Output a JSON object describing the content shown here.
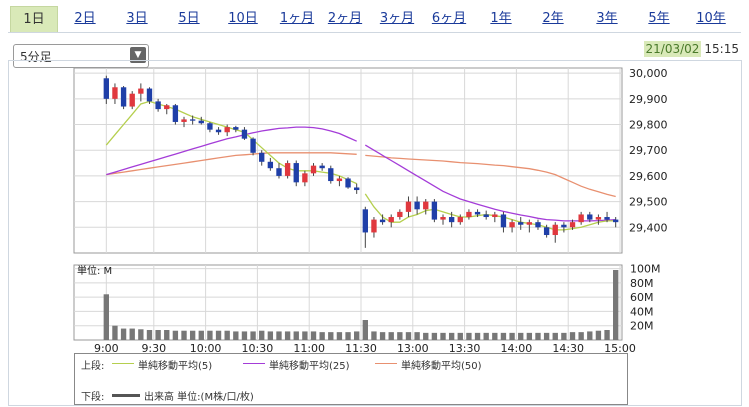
{
  "tabs": [
    "1日",
    "2日",
    "3日",
    "5日",
    "10日",
    "1ヶ月",
    "2ヶ月",
    "3ヶ月",
    "6ヶ月",
    "1年",
    "2年",
    "3年",
    "5年",
    "10年"
  ],
  "active_tab": "1日",
  "interval_select": {
    "value": "5分足"
  },
  "timestamp": {
    "date": "21/03/02",
    "time": "15:15"
  },
  "colors": {
    "up": "#e0383e",
    "down": "#1f3fa8",
    "ma5": "#b5cf4e",
    "ma25": "#a43cd8",
    "ma50": "#e89070",
    "volume": "#777777",
    "grid": "#d8d8d8",
    "accent": "#d9e9b8"
  },
  "chart_data": [
    {
      "type": "candlestick",
      "x_ticks": [
        "9:00",
        "9:30",
        "10:00",
        "10:30",
        "11:00",
        "11:30",
        "13:00",
        "13:30",
        "14:00",
        "14:30",
        "15:00"
      ],
      "y_ticks": [
        "30,000",
        "29,900",
        "29,800",
        "29,700",
        "29,600",
        "29,500",
        "29,400"
      ],
      "ylim": [
        29300,
        30020
      ],
      "grid": true,
      "sessions": [
        {
          "start_bar": 0,
          "bars": 30
        },
        {
          "start_bar": 30,
          "bars": 30
        }
      ],
      "candles": [
        [
          29980,
          29990,
          29880,
          29900
        ],
        [
          29900,
          29960,
          29880,
          29945
        ],
        [
          29945,
          29950,
          29860,
          29870
        ],
        [
          29870,
          29930,
          29860,
          29920
        ],
        [
          29920,
          29960,
          29890,
          29940
        ],
        [
          29940,
          29945,
          29880,
          29890
        ],
        [
          29890,
          29900,
          29850,
          29860
        ],
        [
          29860,
          29880,
          29840,
          29875
        ],
        [
          29875,
          29880,
          29800,
          29810
        ],
        [
          29810,
          29830,
          29790,
          29820
        ],
        [
          29820,
          29835,
          29800,
          29815
        ],
        [
          29815,
          29830,
          29800,
          29805
        ],
        [
          29805,
          29810,
          29770,
          29780
        ],
        [
          29780,
          29790,
          29760,
          29770
        ],
        [
          29770,
          29800,
          29755,
          29790
        ],
        [
          29790,
          29795,
          29770,
          29780
        ],
        [
          29780,
          29790,
          29740,
          29745
        ],
        [
          29745,
          29750,
          29680,
          29690
        ],
        [
          29690,
          29700,
          29640,
          29655
        ],
        [
          29655,
          29670,
          29620,
          29630
        ],
        [
          29630,
          29650,
          29590,
          29600
        ],
        [
          29600,
          29660,
          29590,
          29650
        ],
        [
          29650,
          29660,
          29560,
          29575
        ],
        [
          29575,
          29620,
          29560,
          29610
        ],
        [
          29610,
          29650,
          29600,
          29640
        ],
        [
          29640,
          29650,
          29620,
          29630
        ],
        [
          29630,
          29640,
          29570,
          29580
        ],
        [
          29580,
          29600,
          29560,
          29590
        ],
        [
          29590,
          29595,
          29550,
          29555
        ],
        [
          29555,
          29570,
          29530,
          29545
        ],
        [
          29470,
          29480,
          29320,
          29380
        ],
        [
          29380,
          29440,
          29360,
          29430
        ],
        [
          29430,
          29450,
          29410,
          29420
        ],
        [
          29420,
          29450,
          29400,
          29440
        ],
        [
          29440,
          29470,
          29430,
          29460
        ],
        [
          29460,
          29520,
          29440,
          29500
        ],
        [
          29500,
          29520,
          29450,
          29470
        ],
        [
          29470,
          29510,
          29450,
          29500
        ],
        [
          29500,
          29510,
          29420,
          29430
        ],
        [
          29430,
          29450,
          29410,
          29440
        ],
        [
          29440,
          29460,
          29400,
          29420
        ],
        [
          29420,
          29450,
          29410,
          29440
        ],
        [
          29440,
          29470,
          29430,
          29460
        ],
        [
          29460,
          29470,
          29440,
          29450
        ],
        [
          29450,
          29465,
          29430,
          29440
        ],
        [
          29440,
          29460,
          29420,
          29450
        ],
        [
          29450,
          29460,
          29380,
          29400
        ],
        [
          29400,
          29430,
          29380,
          29420
        ],
        [
          29420,
          29440,
          29390,
          29410
        ],
        [
          29410,
          29430,
          29380,
          29420
        ],
        [
          29420,
          29430,
          29390,
          29400
        ],
        [
          29400,
          29410,
          29360,
          29370
        ],
        [
          29370,
          29420,
          29340,
          29410
        ],
        [
          29410,
          29420,
          29380,
          29400
        ],
        [
          29400,
          29430,
          29390,
          29420
        ],
        [
          29420,
          29460,
          29410,
          29450
        ],
        [
          29450,
          29460,
          29420,
          29430
        ],
        [
          29430,
          29450,
          29410,
          29440
        ],
        [
          29440,
          29460,
          29420,
          29430
        ],
        [
          29430,
          29440,
          29400,
          29420
        ]
      ],
      "ma5": [
        29720,
        29760,
        29800,
        29840,
        29880,
        29890,
        29880,
        29870,
        29860,
        29845,
        29830,
        29820,
        29810,
        29800,
        29790,
        29780,
        29770,
        29740,
        29710,
        29680,
        29650,
        29630,
        29620,
        29620,
        29620,
        29615,
        29610,
        29600,
        29585,
        29570,
        29530,
        29480,
        29440,
        29420,
        29420,
        29440,
        29450,
        29465,
        29470,
        29460,
        29450,
        29440,
        29440,
        29445,
        29450,
        29445,
        29440,
        29430,
        29420,
        29415,
        29410,
        29400,
        29390,
        29390,
        29395,
        29400,
        29410,
        29420,
        29425,
        29425
      ],
      "ma25": [
        29605,
        29615,
        29625,
        29635,
        29645,
        29655,
        29665,
        29675,
        29685,
        29695,
        29705,
        29715,
        29725,
        29735,
        29745,
        29752,
        29760,
        29768,
        29775,
        29780,
        29785,
        29787,
        29790,
        29790,
        29788,
        29783,
        29775,
        29765,
        29750,
        29735,
        29720,
        29700,
        29680,
        29660,
        29640,
        29620,
        29600,
        29580,
        29560,
        29540,
        29525,
        29510,
        29500,
        29490,
        29480,
        29470,
        29462,
        29455,
        29448,
        29442,
        29435,
        29430,
        29428,
        29425,
        29425,
        29425,
        29425,
        29426,
        29428,
        29430
      ],
      "ma50": [
        29605,
        29610,
        29615,
        29620,
        29625,
        29630,
        29635,
        29640,
        29645,
        29650,
        29655,
        29660,
        29665,
        29670,
        29675,
        29680,
        29682,
        29685,
        29688,
        29690,
        29690,
        29690,
        29690,
        29690,
        29690,
        29690,
        29690,
        29688,
        29686,
        29684,
        29680,
        29677,
        29674,
        29670,
        29668,
        29666,
        29664,
        29662,
        29660,
        29658,
        29655,
        29652,
        29650,
        29648,
        29645,
        29642,
        29640,
        29636,
        29632,
        29628,
        29622,
        29615,
        29605,
        29590,
        29575,
        29560,
        29548,
        29538,
        29528,
        29520
      ]
    },
    {
      "type": "bar",
      "title": "単位: M",
      "y_ticks": [
        "100M",
        "80M",
        "60M",
        "40M",
        "20M"
      ],
      "ylim": [
        0,
        105
      ],
      "values": [
        64,
        20,
        16,
        16,
        15,
        14,
        14,
        14,
        13,
        13,
        13,
        13,
        13,
        13,
        13,
        12,
        12,
        12,
        13,
        12,
        12,
        12,
        12,
        12,
        12,
        11,
        11,
        11,
        11,
        12,
        28,
        12,
        11,
        11,
        11,
        11,
        11,
        10,
        10,
        10,
        10,
        10,
        10,
        10,
        10,
        10,
        10,
        10,
        10,
        10,
        10,
        10,
        10,
        10,
        11,
        11,
        12,
        13,
        14,
        98
      ]
    }
  ],
  "legend": {
    "upper_label": "上段:",
    "lower_label": "下段:",
    "items": [
      {
        "label": "単純移動平均(5)"
      },
      {
        "label": "単純移動平均(25)"
      },
      {
        "label": "単純移動平均(50)"
      }
    ],
    "volume_label": "出来高 単位:(M株/口/枚)"
  }
}
